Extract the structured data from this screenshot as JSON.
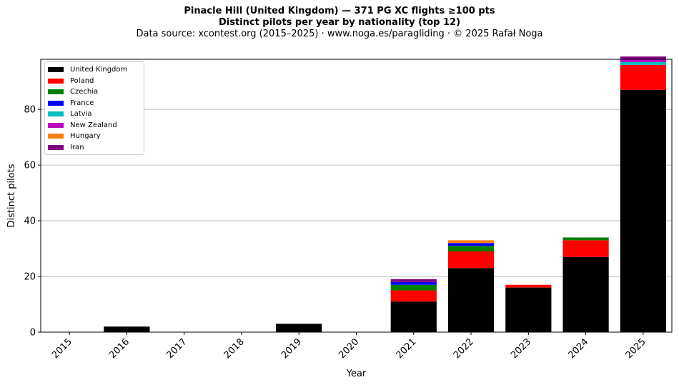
{
  "header": {
    "title": "Pinacle Hill (United Kingdom)  —  371 PG XC flights ≥100 pts",
    "subtitle": "Distinct pilots per year by nationality (top 12)",
    "source": "Data source: xcontest.org (2015–2025)  ·  www.noga.es/paragliding  ·  © 2025 Rafał Noga"
  },
  "chart_data": {
    "type": "bar",
    "stacked": true,
    "xlabel": "Year",
    "ylabel": "Distinct pilots",
    "ylim": [
      0,
      98
    ],
    "yticks": [
      0,
      20,
      40,
      60,
      80
    ],
    "grid": "y",
    "legend_position": "top-left",
    "categories": [
      "2015",
      "2016",
      "2017",
      "2018",
      "2019",
      "2020",
      "2021",
      "2022",
      "2023",
      "2024",
      "2025"
    ],
    "series": [
      {
        "name": "United Kingdom",
        "color": "#000000",
        "values": [
          0,
          2,
          0,
          0,
          3,
          0,
          11,
          23,
          16,
          27,
          87
        ]
      },
      {
        "name": "Poland",
        "color": "#ff0000",
        "values": [
          0,
          0,
          0,
          0,
          0,
          0,
          4,
          6,
          1,
          6,
          9
        ]
      },
      {
        "name": "Czechia",
        "color": "#008000",
        "values": [
          0,
          0,
          0,
          0,
          0,
          0,
          2,
          2,
          0,
          1,
          0
        ]
      },
      {
        "name": "France",
        "color": "#0000ff",
        "values": [
          0,
          0,
          0,
          0,
          0,
          0,
          1,
          1,
          0,
          0,
          0
        ]
      },
      {
        "name": "Latvia",
        "color": "#00bfbf",
        "values": [
          0,
          0,
          0,
          0,
          0,
          0,
          0,
          0,
          0,
          0,
          1
        ]
      },
      {
        "name": "New Zealand",
        "color": "#bf00bf",
        "values": [
          0,
          0,
          0,
          0,
          0,
          0,
          0,
          0,
          0,
          0,
          1
        ]
      },
      {
        "name": "Hungary",
        "color": "#ff7f0e",
        "values": [
          0,
          0,
          0,
          0,
          0,
          0,
          0,
          1,
          0,
          0,
          0
        ]
      },
      {
        "name": "Iran",
        "color": "#800080",
        "values": [
          0,
          0,
          0,
          0,
          0,
          0,
          1,
          0,
          0,
          0,
          1
        ]
      }
    ]
  }
}
